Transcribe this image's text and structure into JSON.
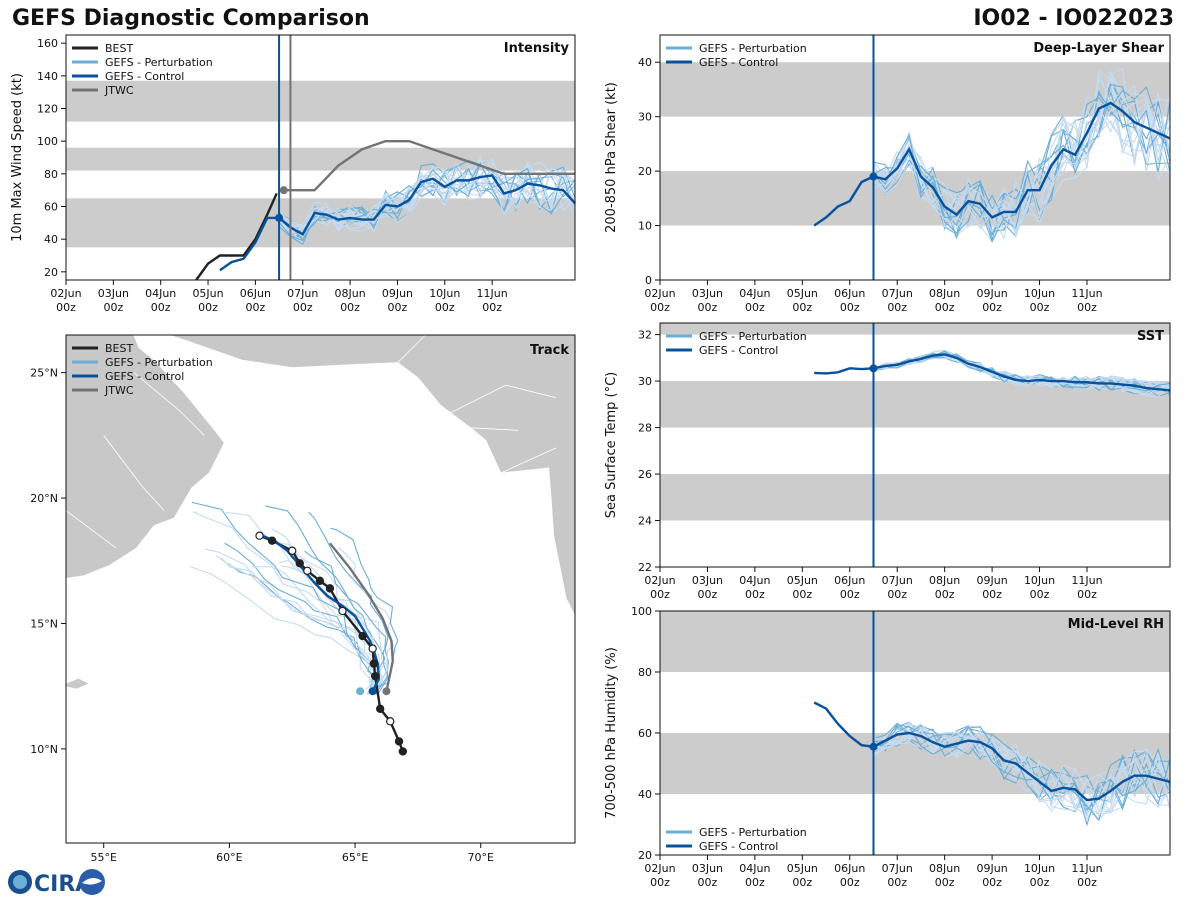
{
  "header": {
    "title_left": "GEFS Diagnostic Comparison",
    "title_right": "IO02 - IO022023"
  },
  "logo": {
    "text": "CIRA",
    "icon": "cira-logo-icon",
    "accent": "#1a4f8f"
  },
  "colors": {
    "best": "#222222",
    "perturbation": "#6baed6",
    "perturbation_light": "#c6dbef",
    "control": "#08519c",
    "jtwc": "#737373",
    "band": "#cccccc",
    "land": "#c8c8c8"
  },
  "time_axis": {
    "ticks": [
      "02Jun",
      "03Jun",
      "04Jun",
      "05Jun",
      "06Jun",
      "07Jun",
      "08Jun",
      "09Jun",
      "10Jun",
      "11Jun"
    ],
    "sub": "00z",
    "range_days": [
      0,
      10.75
    ],
    "init_day": 4.5
  },
  "chart_data": [
    {
      "id": "intensity",
      "type": "line",
      "title": "Intensity",
      "ylabel": "10m Max Wind Speed (kt)",
      "ylim": [
        15,
        165
      ],
      "yticks": [
        20,
        40,
        60,
        80,
        100,
        120,
        140,
        160
      ],
      "bands": [
        [
          35,
          65
        ],
        [
          82,
          96
        ],
        [
          112,
          137
        ]
      ],
      "vlines": [
        {
          "x": 4.5,
          "color": "#08519c"
        },
        {
          "x": 4.74,
          "color": "#737373"
        }
      ],
      "legend": [
        "BEST",
        "GEFS - Perturbation",
        "GEFS - Control",
        "JTWC"
      ],
      "series": [
        {
          "name": "BEST",
          "x": [
            2.75,
            3.0,
            3.25,
            3.5,
            3.75,
            4.0,
            4.25,
            4.45
          ],
          "values": [
            15,
            25,
            30,
            30,
            30,
            40,
            55,
            68
          ]
        },
        {
          "name": "JTWC",
          "x": [
            4.6,
            5.25,
            5.75,
            6.25,
            6.75,
            7.25,
            7.75,
            8.25,
            8.75,
            9.25,
            9.75,
            10.25,
            10.75
          ],
          "values": [
            70,
            70,
            85,
            95,
            100,
            100,
            95,
            90,
            85,
            80,
            80,
            80,
            80
          ]
        },
        {
          "name": "GEFS - Control",
          "x": [
            3.25,
            3.5,
            3.75,
            4.0,
            4.25,
            4.5,
            4.75,
            5.0,
            5.25,
            5.5,
            5.75,
            6.0,
            6.25,
            6.5,
            6.75,
            7.0,
            7.25,
            7.5,
            7.75,
            8.0,
            8.25,
            8.5,
            8.75,
            9.0,
            9.25,
            9.5,
            9.75,
            10.0,
            10.25,
            10.5,
            10.75
          ],
          "values": [
            21,
            26,
            28,
            38,
            53,
            53,
            47,
            43,
            56,
            55,
            52,
            53,
            52,
            52,
            61,
            60,
            64,
            75,
            77,
            72,
            76,
            76,
            78,
            79,
            68,
            70,
            74,
            73,
            71,
            70,
            62
          ]
        }
      ]
    },
    {
      "id": "shear",
      "type": "line",
      "title": "Deep-Layer Shear",
      "ylabel": "200-850 hPa Shear (kt)",
      "ylim": [
        0,
        45
      ],
      "yticks": [
        0,
        10,
        20,
        30,
        40
      ],
      "bands": [
        [
          10,
          20
        ],
        [
          30,
          40
        ]
      ],
      "vlines": [
        {
          "x": 4.5,
          "color": "#08519c"
        }
      ],
      "legend": [
        "GEFS - Perturbation",
        "GEFS - Control"
      ],
      "series": [
        {
          "name": "GEFS - Control",
          "x": [
            3.25,
            3.5,
            3.75,
            4.0,
            4.25,
            4.5,
            4.75,
            5.0,
            5.25,
            5.5,
            5.75,
            6.0,
            6.25,
            6.5,
            6.75,
            7.0,
            7.25,
            7.5,
            7.75,
            8.0,
            8.25,
            8.5,
            8.75,
            9.0,
            9.25,
            9.5,
            9.75,
            10.0,
            10.25,
            10.5,
            10.75
          ],
          "values": [
            10,
            11.5,
            13.5,
            14.5,
            18,
            19,
            18.5,
            20.5,
            24,
            19,
            17,
            13.5,
            12,
            14.5,
            14,
            11.5,
            12.5,
            12.5,
            16.5,
            16.5,
            21,
            24,
            23,
            27,
            31.5,
            32.5,
            31,
            29,
            28,
            27,
            26
          ]
        }
      ]
    },
    {
      "id": "sst",
      "type": "line",
      "title": "SST",
      "ylabel": "Sea Surface Temp (°C)",
      "ylim": [
        22,
        32.5
      ],
      "yticks": [
        22,
        24,
        26,
        28,
        30,
        32
      ],
      "bands": [
        [
          24,
          26
        ],
        [
          28,
          30
        ],
        [
          32,
          32.5
        ]
      ],
      "vlines": [
        {
          "x": 4.5,
          "color": "#08519c"
        }
      ],
      "legend": [
        "GEFS - Perturbation",
        "GEFS - Control"
      ],
      "series": [
        {
          "name": "GEFS - Control",
          "x": [
            3.25,
            3.5,
            3.75,
            4.0,
            4.25,
            4.5,
            4.75,
            5.0,
            5.25,
            5.5,
            5.75,
            6.0,
            6.25,
            6.5,
            6.75,
            7.0,
            7.25,
            7.5,
            7.75,
            8.0,
            8.25,
            8.5,
            8.75,
            9.0,
            9.25,
            9.5,
            9.75,
            10.0,
            10.25,
            10.5,
            10.75
          ],
          "values": [
            30.35,
            30.33,
            30.38,
            30.55,
            30.52,
            30.55,
            30.65,
            30.7,
            30.85,
            30.95,
            31.1,
            31.15,
            31.0,
            30.75,
            30.6,
            30.4,
            30.2,
            30.05,
            30.0,
            30.05,
            30.0,
            30.0,
            29.95,
            29.95,
            29.9,
            29.9,
            29.85,
            29.8,
            29.7,
            29.65,
            29.6
          ]
        }
      ]
    },
    {
      "id": "rh",
      "type": "line",
      "title": "Mid-Level RH",
      "ylabel": "700-500 hPa Humidity (%)",
      "ylim": [
        20,
        100
      ],
      "yticks": [
        20,
        40,
        60,
        80,
        100
      ],
      "bands": [
        [
          40,
          60
        ],
        [
          80,
          100
        ]
      ],
      "vlines": [
        {
          "x": 4.5,
          "color": "#08519c"
        }
      ],
      "legend": [
        "GEFS - Perturbation",
        "GEFS - Control"
      ],
      "series": [
        {
          "name": "GEFS - Control",
          "x": [
            3.25,
            3.5,
            3.75,
            4.0,
            4.25,
            4.5,
            4.75,
            5.0,
            5.25,
            5.5,
            5.75,
            6.0,
            6.25,
            6.5,
            6.75,
            7.0,
            7.25,
            7.5,
            7.75,
            8.0,
            8.25,
            8.5,
            8.75,
            9.0,
            9.25,
            9.5,
            9.75,
            10.0,
            10.25,
            10.5,
            10.75
          ],
          "values": [
            70,
            68,
            63,
            59,
            56,
            55.5,
            57.5,
            59.5,
            60,
            59,
            57,
            55.5,
            56.5,
            57.5,
            57,
            55,
            51,
            50,
            47,
            44,
            41,
            42,
            41.5,
            38,
            38.5,
            41,
            44,
            46,
            46,
            45,
            44
          ]
        }
      ]
    },
    {
      "id": "track",
      "type": "scatter",
      "title": "Track",
      "xlim": [
        53.5,
        73.75
      ],
      "ylim": [
        6.25,
        26.5
      ],
      "xticks": [
        55,
        60,
        65,
        70
      ],
      "xtick_labels": [
        "55°E",
        "60°E",
        "65°E",
        "70°E"
      ],
      "yticks": [
        10,
        15,
        20,
        25
      ],
      "ytick_labels": [
        "10°N",
        "15°N",
        "20°N",
        "25°N"
      ],
      "legend": [
        "BEST",
        "GEFS - Perturbation",
        "GEFS - Control",
        "JTWC"
      ],
      "series": [
        {
          "name": "BEST",
          "lon": [
            66.9,
            66.75,
            66.4,
            66.0,
            65.8,
            65.75,
            65.7,
            65.3,
            64.5,
            64.0,
            63.6,
            63.1,
            62.8,
            62.5,
            61.7,
            61.2
          ],
          "lat": [
            9.9,
            10.3,
            11.1,
            11.6,
            12.9,
            13.4,
            14.0,
            14.5,
            15.5,
            16.4,
            16.7,
            17.1,
            17.4,
            17.9,
            18.3,
            18.5
          ],
          "hollow": [
            false,
            false,
            true,
            false,
            false,
            false,
            true,
            false,
            true,
            false,
            false,
            true,
            false,
            true,
            false,
            true
          ]
        },
        {
          "name": "GEFS - Control",
          "lon": [
            65.7,
            65.95,
            65.9,
            65.75,
            65.6,
            65.3,
            65.0,
            64.5,
            63.9,
            63.4,
            62.9,
            62.3,
            61.8,
            61.3
          ],
          "lat": [
            12.3,
            12.8,
            13.4,
            13.9,
            14.3,
            14.8,
            15.3,
            15.7,
            16.1,
            16.6,
            17.2,
            17.9,
            18.3,
            18.5
          ]
        },
        {
          "name": "JTWC",
          "lon": [
            66.25,
            66.5,
            66.45,
            66.1,
            65.5,
            64.8,
            64.0
          ],
          "lat": [
            12.3,
            13.5,
            14.3,
            15.2,
            16.2,
            17.2,
            18.2
          ]
        }
      ]
    }
  ]
}
